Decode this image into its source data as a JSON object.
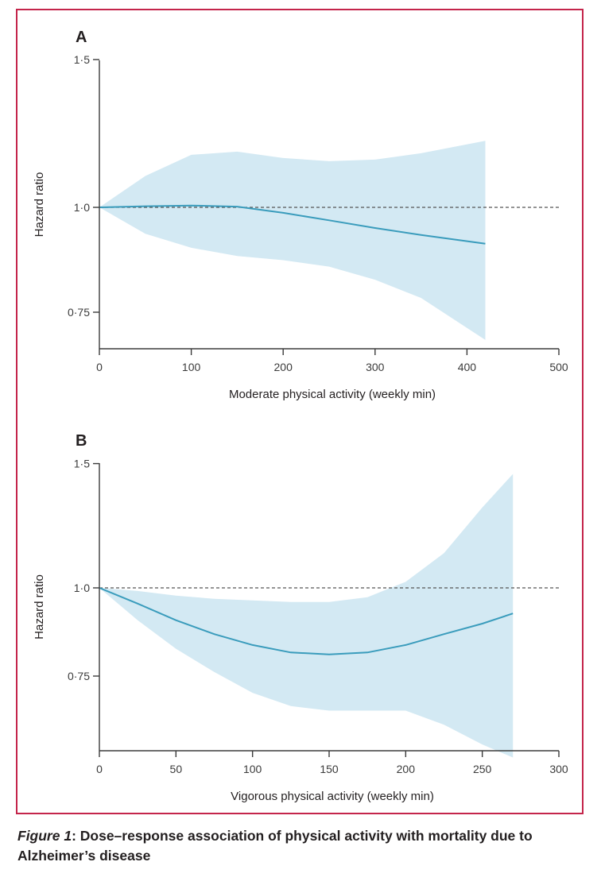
{
  "colors": {
    "frame": "#c4254b",
    "band": "#d3e9f3",
    "curve": "#3a9cbc",
    "axis": "#3b3b3b",
    "reference": "#555555"
  },
  "chart_data": [
    {
      "type": "area",
      "panel_label": "A",
      "xlabel": "Moderate physical activity (weekly min)",
      "ylabel": "Hazard ratio",
      "xlim": [
        0,
        500
      ],
      "ylim": [
        0.68,
        1.5
      ],
      "x_ticks": [
        0,
        100,
        200,
        300,
        400,
        500
      ],
      "x_tick_labels": [
        "0",
        "100",
        "200",
        "300",
        "400",
        "500"
      ],
      "y_ticks": [
        1.5,
        1.0,
        0.75
      ],
      "y_tick_labels": [
        "1·5",
        "1·0",
        "0·75"
      ],
      "y_scale": "log",
      "reference_line": 1.0,
      "series": [
        {
          "name": "Hazard ratio",
          "x": [
            0,
            50,
            100,
            150,
            200,
            250,
            300,
            350,
            420
          ],
          "values": [
            1.0,
            1.003,
            1.005,
            1.002,
            0.985,
            0.965,
            0.945,
            0.927,
            0.905
          ],
          "lower": [
            1.0,
            0.93,
            0.895,
            0.875,
            0.865,
            0.85,
            0.82,
            0.78,
            0.695
          ],
          "upper": [
            1.0,
            1.09,
            1.155,
            1.165,
            1.145,
            1.135,
            1.14,
            1.16,
            1.2
          ]
        }
      ]
    },
    {
      "type": "area",
      "panel_label": "B",
      "xlabel": "Vigorous physical activity (weekly min)",
      "ylabel": "Hazard ratio",
      "xlim": [
        0,
        300
      ],
      "ylim": [
        0.6,
        1.5
      ],
      "x_ticks": [
        0,
        50,
        100,
        150,
        200,
        250,
        300
      ],
      "x_tick_labels": [
        "0",
        "50",
        "100",
        "150",
        "200",
        "250",
        "300"
      ],
      "y_ticks": [
        1.5,
        1.0,
        0.75
      ],
      "y_tick_labels": [
        "1·5",
        "1·0",
        "0·75"
      ],
      "y_scale": "log",
      "reference_line": 1.0,
      "series": [
        {
          "name": "Hazard ratio",
          "x": [
            0,
            25,
            50,
            75,
            100,
            125,
            150,
            175,
            200,
            225,
            250,
            270
          ],
          "values": [
            1.0,
            0.95,
            0.9,
            0.86,
            0.83,
            0.81,
            0.805,
            0.81,
            0.83,
            0.86,
            0.89,
            0.92
          ],
          "lower": [
            1.0,
            0.9,
            0.82,
            0.76,
            0.71,
            0.68,
            0.67,
            0.67,
            0.67,
            0.64,
            0.6,
            0.575
          ],
          "upper": [
            1.0,
            0.99,
            0.975,
            0.965,
            0.96,
            0.955,
            0.955,
            0.97,
            1.02,
            1.12,
            1.3,
            1.45
          ]
        }
      ]
    }
  ],
  "caption": {
    "figure_label": "Figure 1",
    "text": ": Dose–response association of physical activity with mortality due to Alzheimer’s disease"
  }
}
